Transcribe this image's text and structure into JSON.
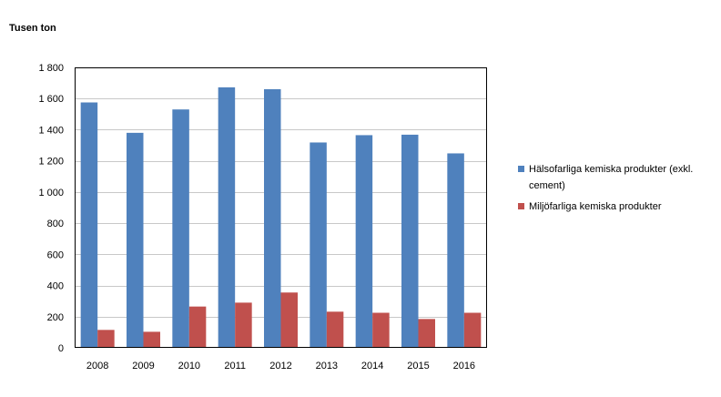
{
  "chart_data": {
    "type": "bar",
    "title": "",
    "xlabel": "",
    "ylabel": "Tusen ton",
    "categories": [
      "2008",
      "2009",
      "2010",
      "2011",
      "2012",
      "2013",
      "2014",
      "2015",
      "2016"
    ],
    "series": [
      {
        "name": "Hälsofarliga kemiska produkter (exkl. cement)",
        "name_lines": [
          "Hälsofarliga kemiska produkter (exkl.",
          "cement)"
        ],
        "color": "#4f81bd",
        "values": [
          1575,
          1380,
          1530,
          1672,
          1660,
          1318,
          1365,
          1368,
          1248
        ]
      },
      {
        "name": "Miljöfarliga kemiska produkter",
        "name_lines": [
          "Miljöfarliga kemiska produkter"
        ],
        "color": "#c0504d",
        "values": [
          115,
          103,
          265,
          290,
          355,
          232,
          225,
          185,
          225
        ]
      }
    ],
    "ylim": [
      0,
      1800
    ],
    "yticks": [
      0,
      200,
      400,
      600,
      800,
      1000,
      1200,
      1400,
      1600,
      1800
    ],
    "ytick_labels": [
      "0",
      "200",
      "400",
      "600",
      "800",
      "1 000",
      "1 200",
      "1 400",
      "1 600",
      "1 800"
    ],
    "grid": true,
    "legend_position": "right"
  }
}
